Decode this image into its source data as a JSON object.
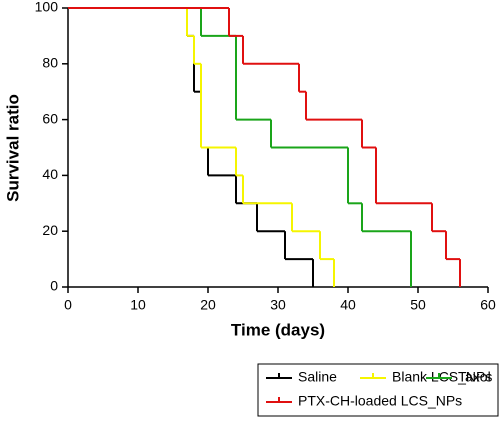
{
  "chart_data": {
    "type": "step",
    "xlabel": "Time (days)",
    "ylabel": "Survival ratio",
    "xlim": [
      0,
      60
    ],
    "xticks": [
      0,
      10,
      20,
      30,
      40,
      50,
      60
    ],
    "ylim": [
      0,
      100
    ],
    "yticks": [
      0,
      20,
      40,
      60,
      80,
      100
    ],
    "series": [
      {
        "name": "Saline",
        "color": "#000000",
        "x": [
          0,
          17,
          18,
          19,
          20,
          24,
          27,
          31,
          35
        ],
        "values": [
          100,
          90,
          70,
          50,
          40,
          30,
          20,
          10,
          0
        ]
      },
      {
        "name": "Blank LCS_NPs",
        "color": "#f5f500",
        "x": [
          0,
          17,
          18,
          19,
          24,
          25,
          32,
          36,
          38
        ],
        "values": [
          100,
          90,
          80,
          50,
          40,
          30,
          20,
          10,
          0
        ]
      },
      {
        "name": "Taxol",
        "color": "#1aa51a",
        "x": [
          0,
          19,
          24,
          29,
          40,
          42,
          49
        ],
        "values": [
          100,
          90,
          60,
          50,
          30,
          20,
          0
        ]
      },
      {
        "name": "PTX-CH-loaded LCS_NPs",
        "color": "#e01010",
        "x": [
          0,
          23,
          25,
          33,
          34,
          42,
          44,
          52,
          54,
          56
        ],
        "values": [
          100,
          90,
          80,
          70,
          60,
          50,
          30,
          20,
          10,
          0
        ]
      }
    ]
  }
}
